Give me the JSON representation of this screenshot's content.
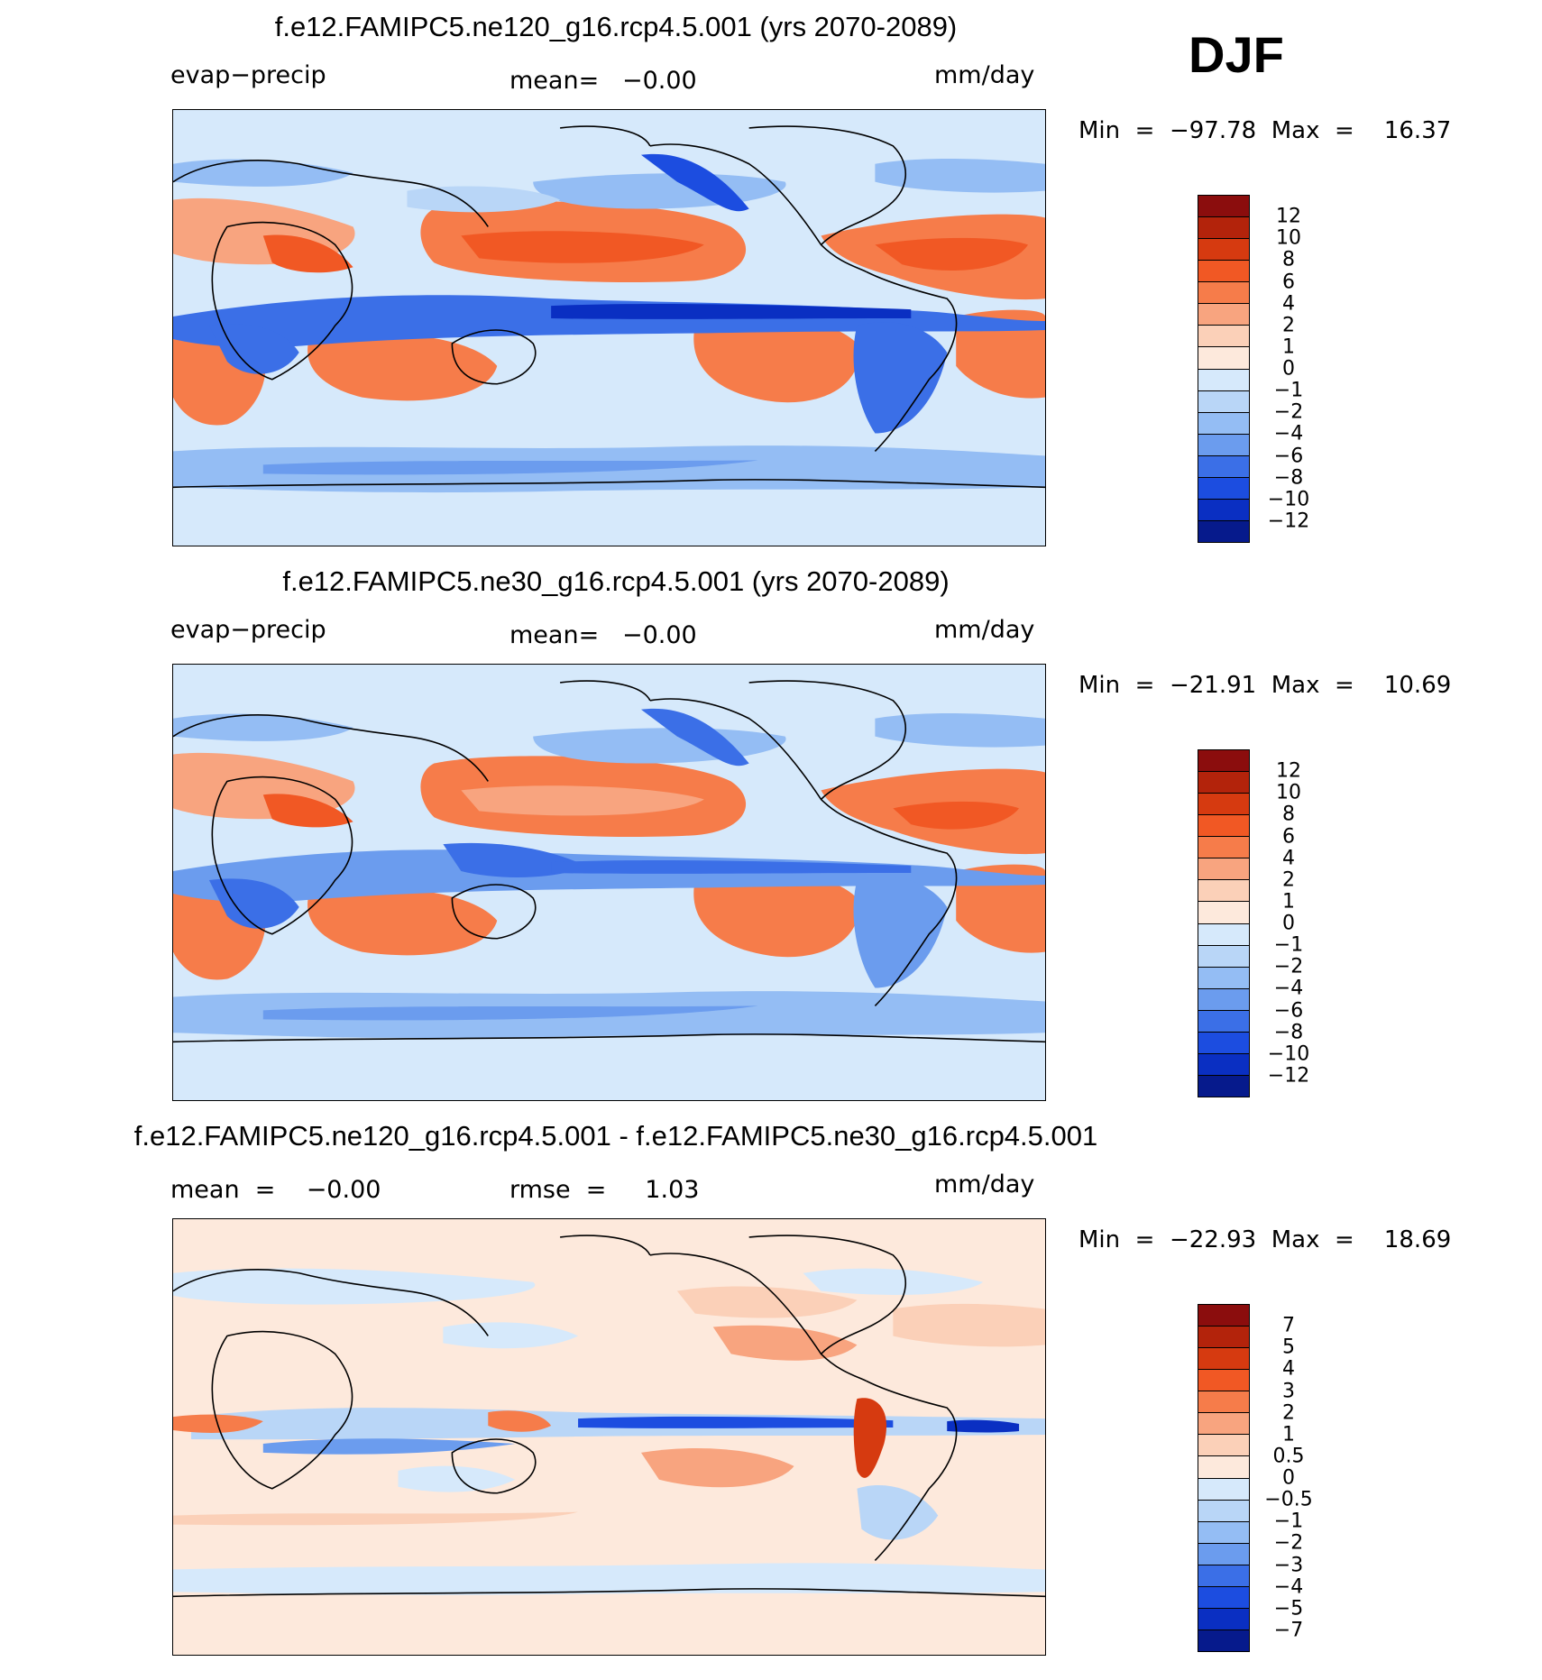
{
  "season": "DJF",
  "panels": [
    {
      "title": "f.e12.FAMIPC5.ne120_g16.rcp4.5.001 (yrs 2070-2089)",
      "left_label": "evap−precip",
      "center_label": "mean=   −0.00",
      "units": "mm/day",
      "min_label": "Min  =  −97.78  Max  =    16.37",
      "colorbar": {
        "colors": [
          "#8b0d0d",
          "#b3230b",
          "#d63a10",
          "#f15824",
          "#f67c4a",
          "#f8a47f",
          "#fbd0b8",
          "#fde9dc",
          "#d6e9fb",
          "#b9d6f7",
          "#94bdf4",
          "#6b9cee",
          "#3b6fe7",
          "#1c4de0",
          "#0a2fc2",
          "#061a8c"
        ],
        "labels": [
          "12",
          "10",
          "8",
          "6",
          "4",
          "2",
          "1",
          "0",
          "−1",
          "−2",
          "−4",
          "−6",
          "−8",
          "−10",
          "−12"
        ]
      }
    },
    {
      "title": "f.e12.FAMIPC5.ne30_g16.rcp4.5.001 (yrs 2070-2089)",
      "left_label": "evap−precip",
      "center_label": "mean=   −0.00",
      "units": "mm/day",
      "min_label": "Min  =  −21.91  Max  =    10.69",
      "colorbar": {
        "colors": [
          "#8b0d0d",
          "#b3230b",
          "#d63a10",
          "#f15824",
          "#f67c4a",
          "#f8a47f",
          "#fbd0b8",
          "#fde9dc",
          "#d6e9fb",
          "#b9d6f7",
          "#94bdf4",
          "#6b9cee",
          "#3b6fe7",
          "#1c4de0",
          "#0a2fc2",
          "#061a8c"
        ],
        "labels": [
          "12",
          "10",
          "8",
          "6",
          "4",
          "2",
          "1",
          "0",
          "−1",
          "−2",
          "−4",
          "−6",
          "−8",
          "−10",
          "−12"
        ]
      }
    },
    {
      "title": "f.e12.FAMIPC5.ne120_g16.rcp4.5.001 - f.e12.FAMIPC5.ne30_g16.rcp4.5.001",
      "left_label": "mean  =    −0.00",
      "center_label": "rmse  =     1.03",
      "units": "mm/day",
      "min_label": "Min  =  −22.93  Max  =    18.69",
      "colorbar": {
        "colors": [
          "#8b0d0d",
          "#b3230b",
          "#d63a10",
          "#f15824",
          "#f67c4a",
          "#f8a47f",
          "#fbd0b8",
          "#fde9dc",
          "#d6e9fb",
          "#b9d6f7",
          "#94bdf4",
          "#6b9cee",
          "#3b6fe7",
          "#1c4de0",
          "#0a2fc2",
          "#061a8c"
        ],
        "labels": [
          "7",
          "5",
          "4",
          "3",
          "2",
          "1",
          "0.5",
          "0",
          "−0.5",
          "−1",
          "−2",
          "−3",
          "−4",
          "−5",
          "−7"
        ]
      }
    }
  ]
}
